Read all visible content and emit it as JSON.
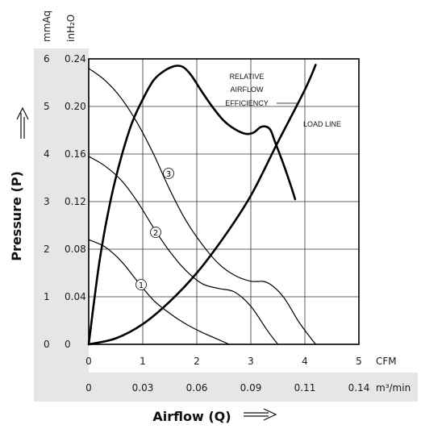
{
  "chart_data": {
    "type": "line",
    "ylabel": "Pressure (P)",
    "xlabel": "Airflow (Q)",
    "y_units": [
      "mmAq",
      "inH₂O"
    ],
    "x_units": [
      "CFM",
      "m³/min"
    ],
    "xlim": [
      0,
      5
    ],
    "ylim": [
      0,
      0.24
    ],
    "grid": true,
    "x_ticks_cfm": [
      "0",
      "1",
      "2",
      "3",
      "4",
      "5"
    ],
    "x_ticks_m3min": [
      "0",
      "0.03",
      "0.06",
      "0.09",
      "0.11",
      "0.14"
    ],
    "y_ticks_inh2o": [
      "0",
      "0.04",
      "0.08",
      "0.12",
      "0.16",
      "0.20",
      "0.24"
    ],
    "y_ticks_mmaq": [
      "0",
      "1",
      "2",
      "3",
      "4",
      "5",
      "6"
    ],
    "series": [
      {
        "name": "1",
        "label": "①",
        "x": [
          0,
          0.3,
          0.6,
          0.9,
          1.2,
          1.5,
          1.8,
          2.1,
          2.4,
          2.6
        ],
        "y": [
          0.088,
          0.082,
          0.07,
          0.053,
          0.037,
          0.026,
          0.017,
          0.01,
          0.004,
          0
        ]
      },
      {
        "name": "2",
        "label": "②",
        "x": [
          0,
          0.3,
          0.6,
          0.9,
          1.2,
          1.5,
          1.8,
          2.1,
          2.4,
          2.7,
          3.0,
          3.3,
          3.5
        ],
        "y": [
          0.158,
          0.15,
          0.138,
          0.12,
          0.098,
          0.078,
          0.062,
          0.051,
          0.047,
          0.044,
          0.032,
          0.012,
          0
        ]
      },
      {
        "name": "3",
        "label": "③",
        "x": [
          0,
          0.3,
          0.6,
          0.9,
          1.2,
          1.5,
          1.8,
          2.1,
          2.4,
          2.7,
          3.0,
          3.3,
          3.6,
          3.9,
          4.2
        ],
        "y": [
          0.232,
          0.222,
          0.207,
          0.186,
          0.16,
          0.13,
          0.104,
          0.084,
          0.068,
          0.058,
          0.053,
          0.052,
          0.04,
          0.018,
          0
        ]
      },
      {
        "name": "LOAD LINE",
        "label": "LOAD LINE",
        "x": [
          0,
          0.5,
          1.0,
          1.5,
          2.0,
          2.5,
          3.0,
          3.5,
          4.0,
          4.2
        ],
        "y": [
          0,
          0.005,
          0.017,
          0.036,
          0.06,
          0.09,
          0.125,
          0.17,
          0.214,
          0.235
        ]
      },
      {
        "name": "RELATIVE AIRFLOW EFFICIENCY",
        "label": "RELATIVE AIRFLOW EFFICIENCY",
        "x": [
          0,
          0.2,
          0.4,
          0.6,
          0.8,
          1.0,
          1.2,
          1.4,
          1.6,
          1.75,
          1.9,
          2.1,
          2.3,
          2.5,
          2.7,
          2.9,
          3.05,
          3.2,
          3.35,
          3.45,
          3.6,
          3.75,
          3.82
        ],
        "y": [
          0,
          0.07,
          0.12,
          0.157,
          0.186,
          0.206,
          0.222,
          0.23,
          0.234,
          0.233,
          0.226,
          0.212,
          0.199,
          0.188,
          0.181,
          0.177,
          0.178,
          0.183,
          0.181,
          0.17,
          0.152,
          0.132,
          0.122
        ]
      }
    ],
    "annotations": [
      "RELATIVE",
      "AIRFLOW",
      "EFFICIENCY",
      "LOAD LINE"
    ]
  }
}
